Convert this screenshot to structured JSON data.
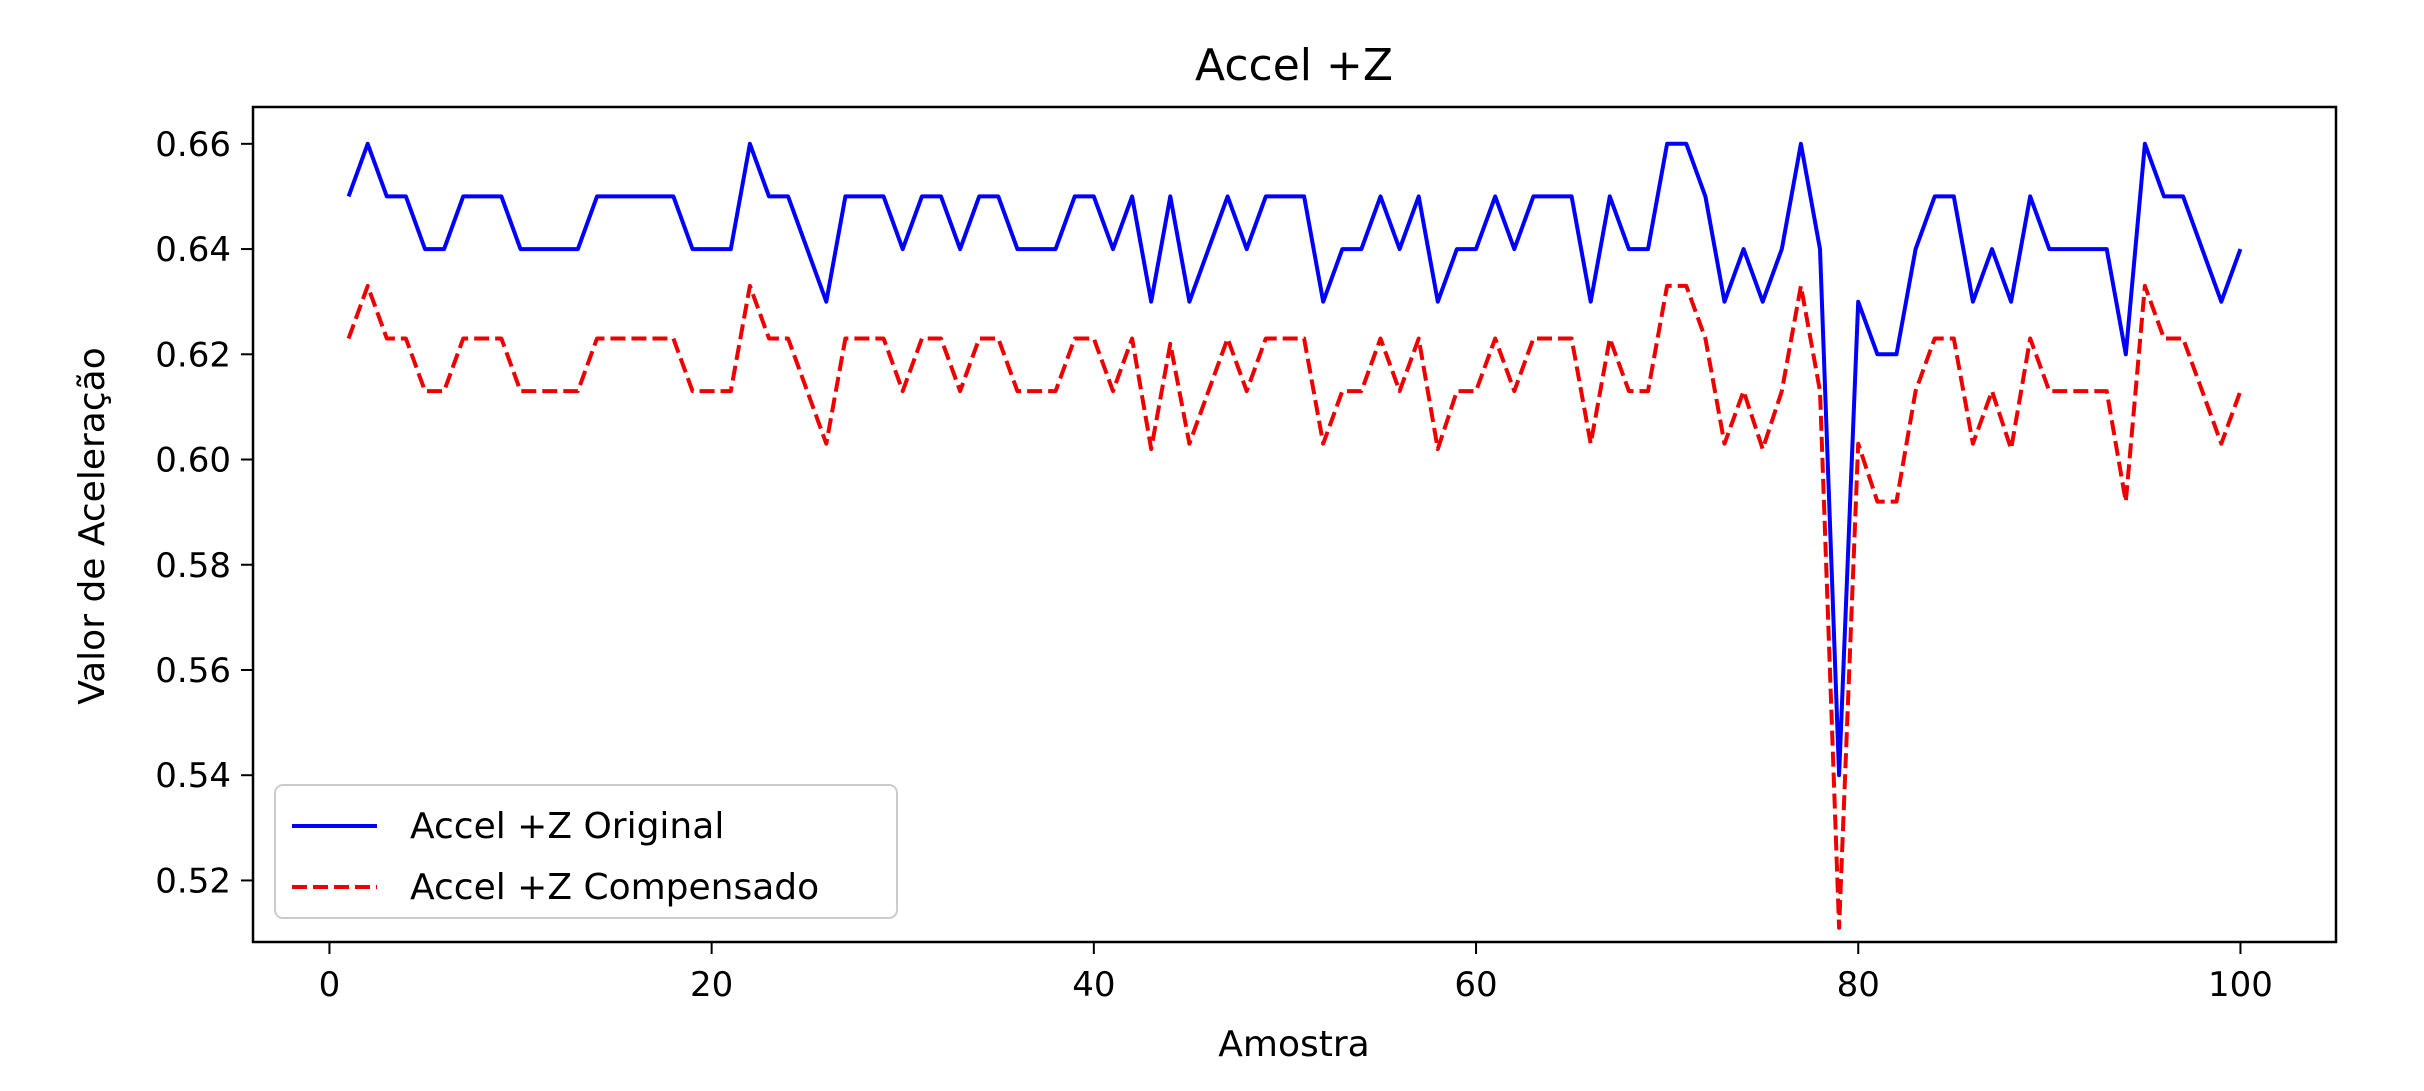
{
  "chart_data": {
    "type": "line",
    "title": "Accel +Z",
    "xlabel": "Amostra",
    "ylabel": "Valor de Aceleração",
    "xlim": [
      -4,
      105
    ],
    "ylim": [
      0.5083,
      0.667
    ],
    "xticks": [
      0,
      20,
      40,
      60,
      80,
      100
    ],
    "xtick_labels": [
      "0",
      "20",
      "40",
      "60",
      "80",
      "100"
    ],
    "yticks": [
      0.52,
      0.54,
      0.56,
      0.58,
      0.6,
      0.62,
      0.64,
      0.66
    ],
    "ytick_labels": [
      "0.52",
      "0.54",
      "0.56",
      "0.58",
      "0.60",
      "0.62",
      "0.64",
      "0.66"
    ],
    "grid": false,
    "legend_position": "lower-left",
    "x": [
      1,
      2,
      3,
      4,
      5,
      6,
      7,
      8,
      9,
      10,
      11,
      12,
      13,
      14,
      15,
      16,
      17,
      18,
      19,
      20,
      21,
      22,
      23,
      24,
      25,
      26,
      27,
      28,
      29,
      30,
      31,
      32,
      33,
      34,
      35,
      36,
      37,
      38,
      39,
      40,
      41,
      42,
      43,
      44,
      45,
      46,
      47,
      48,
      49,
      50,
      51,
      52,
      53,
      54,
      55,
      56,
      57,
      58,
      59,
      60,
      61,
      62,
      63,
      64,
      65,
      66,
      67,
      68,
      69,
      70,
      71,
      72,
      73,
      74,
      75,
      76,
      77,
      78,
      79,
      80,
      81,
      82,
      83,
      84,
      85,
      86,
      87,
      88,
      89,
      90,
      91,
      92,
      93,
      94,
      95,
      96,
      97,
      98,
      99,
      100
    ],
    "series": [
      {
        "name": "Accel +Z Original",
        "color": "#0000ff",
        "style": "solid",
        "values": [
          0.65,
          0.66,
          0.65,
          0.65,
          0.64,
          0.64,
          0.65,
          0.65,
          0.65,
          0.64,
          0.64,
          0.64,
          0.64,
          0.65,
          0.65,
          0.65,
          0.65,
          0.65,
          0.64,
          0.64,
          0.64,
          0.66,
          0.65,
          0.65,
          0.64,
          0.63,
          0.65,
          0.65,
          0.65,
          0.64,
          0.65,
          0.65,
          0.64,
          0.65,
          0.65,
          0.64,
          0.64,
          0.64,
          0.65,
          0.65,
          0.64,
          0.65,
          0.63,
          0.65,
          0.63,
          0.64,
          0.65,
          0.64,
          0.65,
          0.65,
          0.65,
          0.63,
          0.64,
          0.64,
          0.65,
          0.64,
          0.65,
          0.63,
          0.64,
          0.64,
          0.65,
          0.64,
          0.65,
          0.65,
          0.65,
          0.63,
          0.65,
          0.64,
          0.64,
          0.66,
          0.66,
          0.65,
          0.63,
          0.64,
          0.63,
          0.64,
          0.66,
          0.64,
          0.54,
          0.63,
          0.62,
          0.62,
          0.64,
          0.65,
          0.65,
          0.63,
          0.64,
          0.63,
          0.65,
          0.64,
          0.64,
          0.64,
          0.64,
          0.62,
          0.66,
          0.65,
          0.65,
          0.64,
          0.63,
          0.64
        ]
      },
      {
        "name": "Accel +Z Compensado",
        "color": "#ee0000",
        "style": "dashed",
        "values": [
          0.623,
          0.633,
          0.623,
          0.623,
          0.613,
          0.613,
          0.623,
          0.623,
          0.623,
          0.613,
          0.613,
          0.613,
          0.613,
          0.623,
          0.623,
          0.623,
          0.623,
          0.623,
          0.613,
          0.613,
          0.613,
          0.633,
          0.623,
          0.623,
          0.613,
          0.603,
          0.623,
          0.623,
          0.623,
          0.613,
          0.623,
          0.623,
          0.613,
          0.623,
          0.623,
          0.613,
          0.613,
          0.613,
          0.623,
          0.623,
          0.613,
          0.623,
          0.602,
          0.622,
          0.603,
          0.613,
          0.623,
          0.613,
          0.623,
          0.623,
          0.623,
          0.603,
          0.613,
          0.613,
          0.623,
          0.613,
          0.623,
          0.602,
          0.613,
          0.613,
          0.623,
          0.613,
          0.623,
          0.623,
          0.623,
          0.603,
          0.623,
          0.613,
          0.613,
          0.633,
          0.633,
          0.623,
          0.603,
          0.613,
          0.602,
          0.613,
          0.633,
          0.613,
          0.511,
          0.603,
          0.592,
          0.592,
          0.613,
          0.623,
          0.623,
          0.603,
          0.613,
          0.602,
          0.623,
          0.613,
          0.613,
          0.613,
          0.613,
          0.592,
          0.633,
          0.623,
          0.623,
          0.613,
          0.603,
          0.613
        ]
      }
    ]
  }
}
